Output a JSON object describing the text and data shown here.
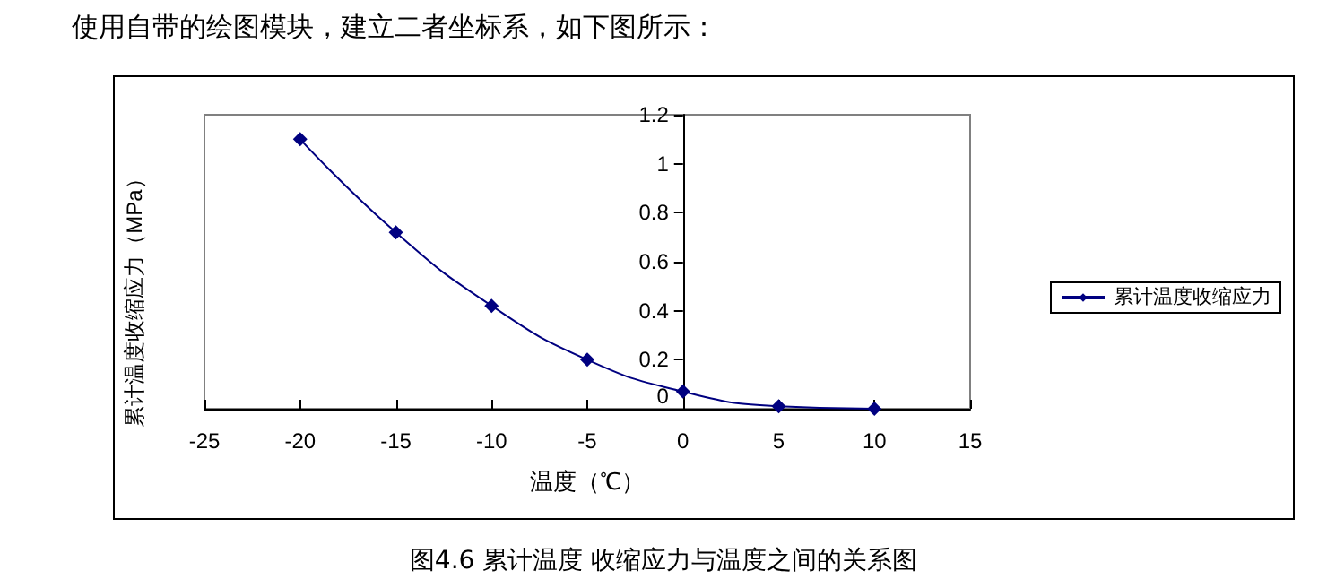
{
  "chart_data": {
    "type": "line",
    "xlabel": "温度（℃）",
    "ylabel": "累计温度收缩应力（MPa）",
    "annotations": [
      "使用自带的绘图模块，建立二者坐标系，如下图所示：",
      "图4.6 累计温度 收缩应力与温度之间的关系图"
    ],
    "x": [
      -20,
      -15,
      -10,
      -5,
      0,
      5,
      10
    ],
    "series": [
      {
        "name": "累计温度收缩应力",
        "color": "#000080",
        "values": [
          1.1,
          0.72,
          0.42,
          0.2,
          0.07,
          0.01,
          0.0
        ]
      }
    ],
    "xlim": [
      -25,
      15
    ],
    "xticks": [
      -25,
      -20,
      -15,
      -10,
      -5,
      0,
      5,
      10,
      15
    ],
    "ylim": [
      0,
      1.2
    ],
    "yticks": [
      0,
      0.2,
      0.4,
      0.6,
      0.8,
      1,
      1.2
    ],
    "marker": "diamond",
    "line_style": "solid",
    "grid": false,
    "legend": "right"
  }
}
